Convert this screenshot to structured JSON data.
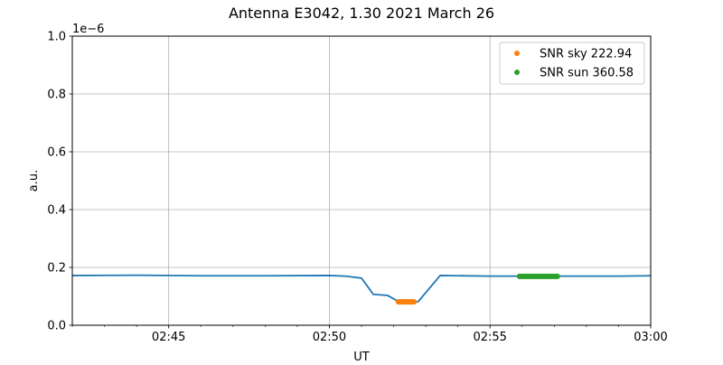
{
  "chart_data": {
    "type": "line",
    "title": "Antenna E3042, 1.30 2021 March 26",
    "xlabel": "UT",
    "ylabel": "a.u.",
    "y_offset_label": "1e−6",
    "xlim": [
      "02:42:00",
      "03:00:00"
    ],
    "ylim": [
      0,
      1.0
    ],
    "x_ticks": [
      "02:45",
      "02:50",
      "02:55",
      "03:00"
    ],
    "y_ticks": [
      "0.0",
      "0.2",
      "0.4",
      "0.6",
      "0.8",
      "1.0"
    ],
    "grid": true,
    "legend_position": "top-right",
    "series": [
      {
        "type": "line",
        "color": "#1f77b4",
        "points": [
          [
            "02:42:00",
            0.172
          ],
          [
            "02:44:00",
            0.173
          ],
          [
            "02:46:00",
            0.171
          ],
          [
            "02:48:00",
            0.171
          ],
          [
            "02:50:00",
            0.172
          ],
          [
            "02:50:30",
            0.17
          ],
          [
            "02:51:00",
            0.163
          ],
          [
            "02:51:22",
            0.107
          ],
          [
            "02:51:49",
            0.103
          ],
          [
            "02:52:07",
            0.084
          ],
          [
            "02:52:38",
            0.081
          ],
          [
            "02:52:46",
            0.082
          ],
          [
            "02:53:27",
            0.172
          ],
          [
            "02:55:00",
            0.17
          ],
          [
            "02:57:00",
            0.17
          ],
          [
            "02:59:00",
            0.17
          ],
          [
            "03:00:00",
            0.171
          ]
        ]
      },
      {
        "type": "scatter",
        "name": "SNR sky 222.94",
        "color": "#ff7f0e",
        "points": [
          [
            "02:52:09",
            0.081
          ],
          [
            "02:52:16",
            0.081
          ],
          [
            "02:52:23",
            0.081
          ],
          [
            "02:52:30",
            0.081
          ],
          [
            "02:52:38",
            0.081
          ]
        ]
      },
      {
        "type": "scatter",
        "name": "SNR sun 360.58",
        "color": "#2ca02c",
        "points": [
          [
            "02:55:55",
            0.169
          ],
          [
            "02:56:09",
            0.169
          ],
          [
            "02:56:23",
            0.169
          ],
          [
            "02:56:37",
            0.169
          ],
          [
            "02:56:51",
            0.169
          ],
          [
            "02:57:06",
            0.169
          ]
        ]
      }
    ]
  }
}
